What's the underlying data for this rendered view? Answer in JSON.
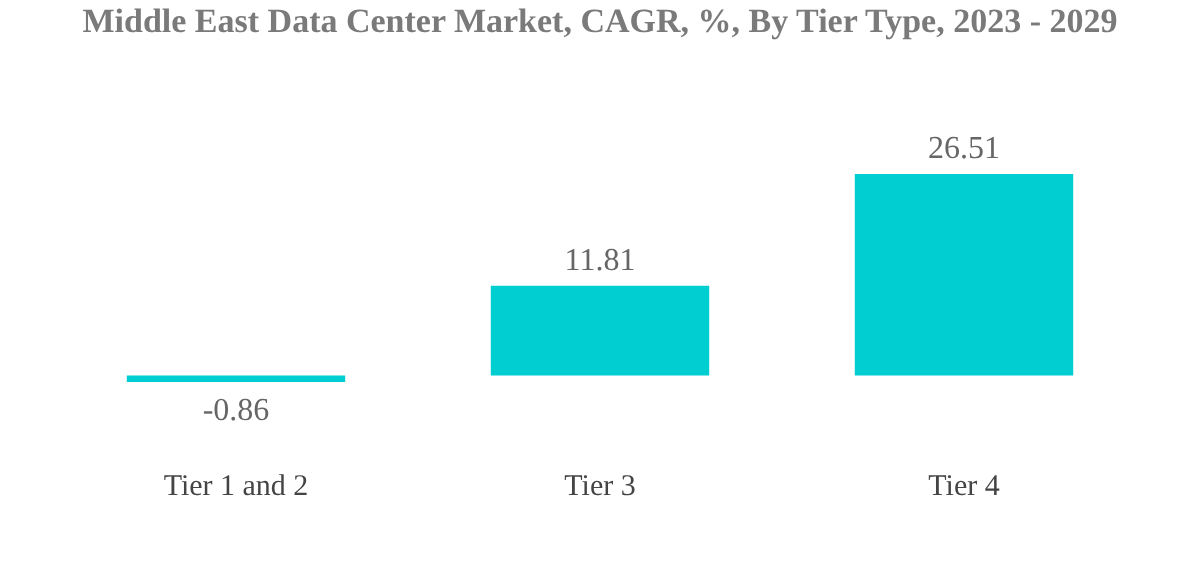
{
  "chart_data": {
    "type": "bar",
    "title": "Middle East Data Center Market, CAGR, %, By Tier Type, 2023 - 2029",
    "categories": [
      "Tier 1 and 2",
      "Tier 3",
      "Tier 4"
    ],
    "values": [
      -0.86,
      11.81,
      26.51
    ],
    "color": "#00ced1",
    "data_labels": true,
    "tick_labels": "x"
  }
}
